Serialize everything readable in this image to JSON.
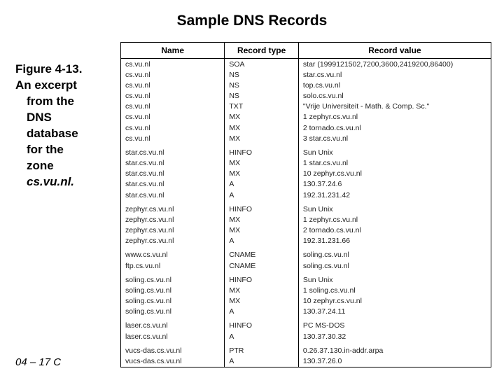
{
  "title": "Sample DNS Records",
  "caption": {
    "fig": "Figure 4-13.",
    "text_lines": [
      "An excerpt",
      "from the",
      "DNS",
      "database",
      "for the",
      "zone"
    ],
    "zone": "cs.vu.nl."
  },
  "footer": "04 – 17 C",
  "table": {
    "headers": [
      "Name",
      "Record type",
      "Record value"
    ],
    "groups": [
      [
        [
          "cs.vu.nl",
          "SOA",
          "star (1999121502,7200,3600,2419200,86400)"
        ],
        [
          "cs.vu.nl",
          "NS",
          "star.cs.vu.nl"
        ],
        [
          "cs.vu.nl",
          "NS",
          "top.cs.vu.nl"
        ],
        [
          "cs.vu.nl",
          "NS",
          "solo.cs.vu.nl"
        ],
        [
          "cs.vu.nl",
          "TXT",
          "\"Vrije Universiteit - Math. & Comp. Sc.\""
        ],
        [
          "cs.vu.nl",
          "MX",
          "1 zephyr.cs.vu.nl"
        ],
        [
          "cs.vu.nl",
          "MX",
          "2 tornado.cs.vu.nl"
        ],
        [
          "cs.vu.nl",
          "MX",
          "3 star.cs.vu.nl"
        ]
      ],
      [
        [
          "star.cs.vu.nl",
          "HINFO",
          "Sun Unix"
        ],
        [
          "star.cs.vu.nl",
          "MX",
          "1 star.cs.vu.nl"
        ],
        [
          "star.cs.vu.nl",
          "MX",
          "10 zephyr.cs.vu.nl"
        ],
        [
          "star.cs.vu.nl",
          "A",
          "130.37.24.6"
        ],
        [
          "star.cs.vu.nl",
          "A",
          "192.31.231.42"
        ]
      ],
      [
        [
          "zephyr.cs.vu.nl",
          "HINFO",
          "Sun Unix"
        ],
        [
          "zephyr.cs.vu.nl",
          "MX",
          "1 zephyr.cs.vu.nl"
        ],
        [
          "zephyr.cs.vu.nl",
          "MX",
          "2 tornado.cs.vu.nl"
        ],
        [
          "zephyr.cs.vu.nl",
          "A",
          "192.31.231.66"
        ]
      ],
      [
        [
          "www.cs.vu.nl",
          "CNAME",
          "soling.cs.vu.nl"
        ],
        [
          "ftp.cs.vu.nl",
          "CNAME",
          "soling.cs.vu.nl"
        ]
      ],
      [
        [
          "soling.cs.vu.nl",
          "HINFO",
          "Sun Unix"
        ],
        [
          "soling.cs.vu.nl",
          "MX",
          "1 soling.cs.vu.nl"
        ],
        [
          "soling.cs.vu.nl",
          "MX",
          "10 zephyr.cs.vu.nl"
        ],
        [
          "soling.cs.vu.nl",
          "A",
          "130.37.24.11"
        ]
      ],
      [
        [
          "laser.cs.vu.nl",
          "HINFO",
          "PC MS-DOS"
        ],
        [
          "laser.cs.vu.nl",
          "A",
          "130.37.30.32"
        ]
      ],
      [
        [
          "vucs-das.cs.vu.nl",
          "PTR",
          "0.26.37.130.in-addr.arpa"
        ],
        [
          "vucs-das.cs.vu.nl",
          "A",
          "130.37.26.0"
        ]
      ]
    ]
  }
}
